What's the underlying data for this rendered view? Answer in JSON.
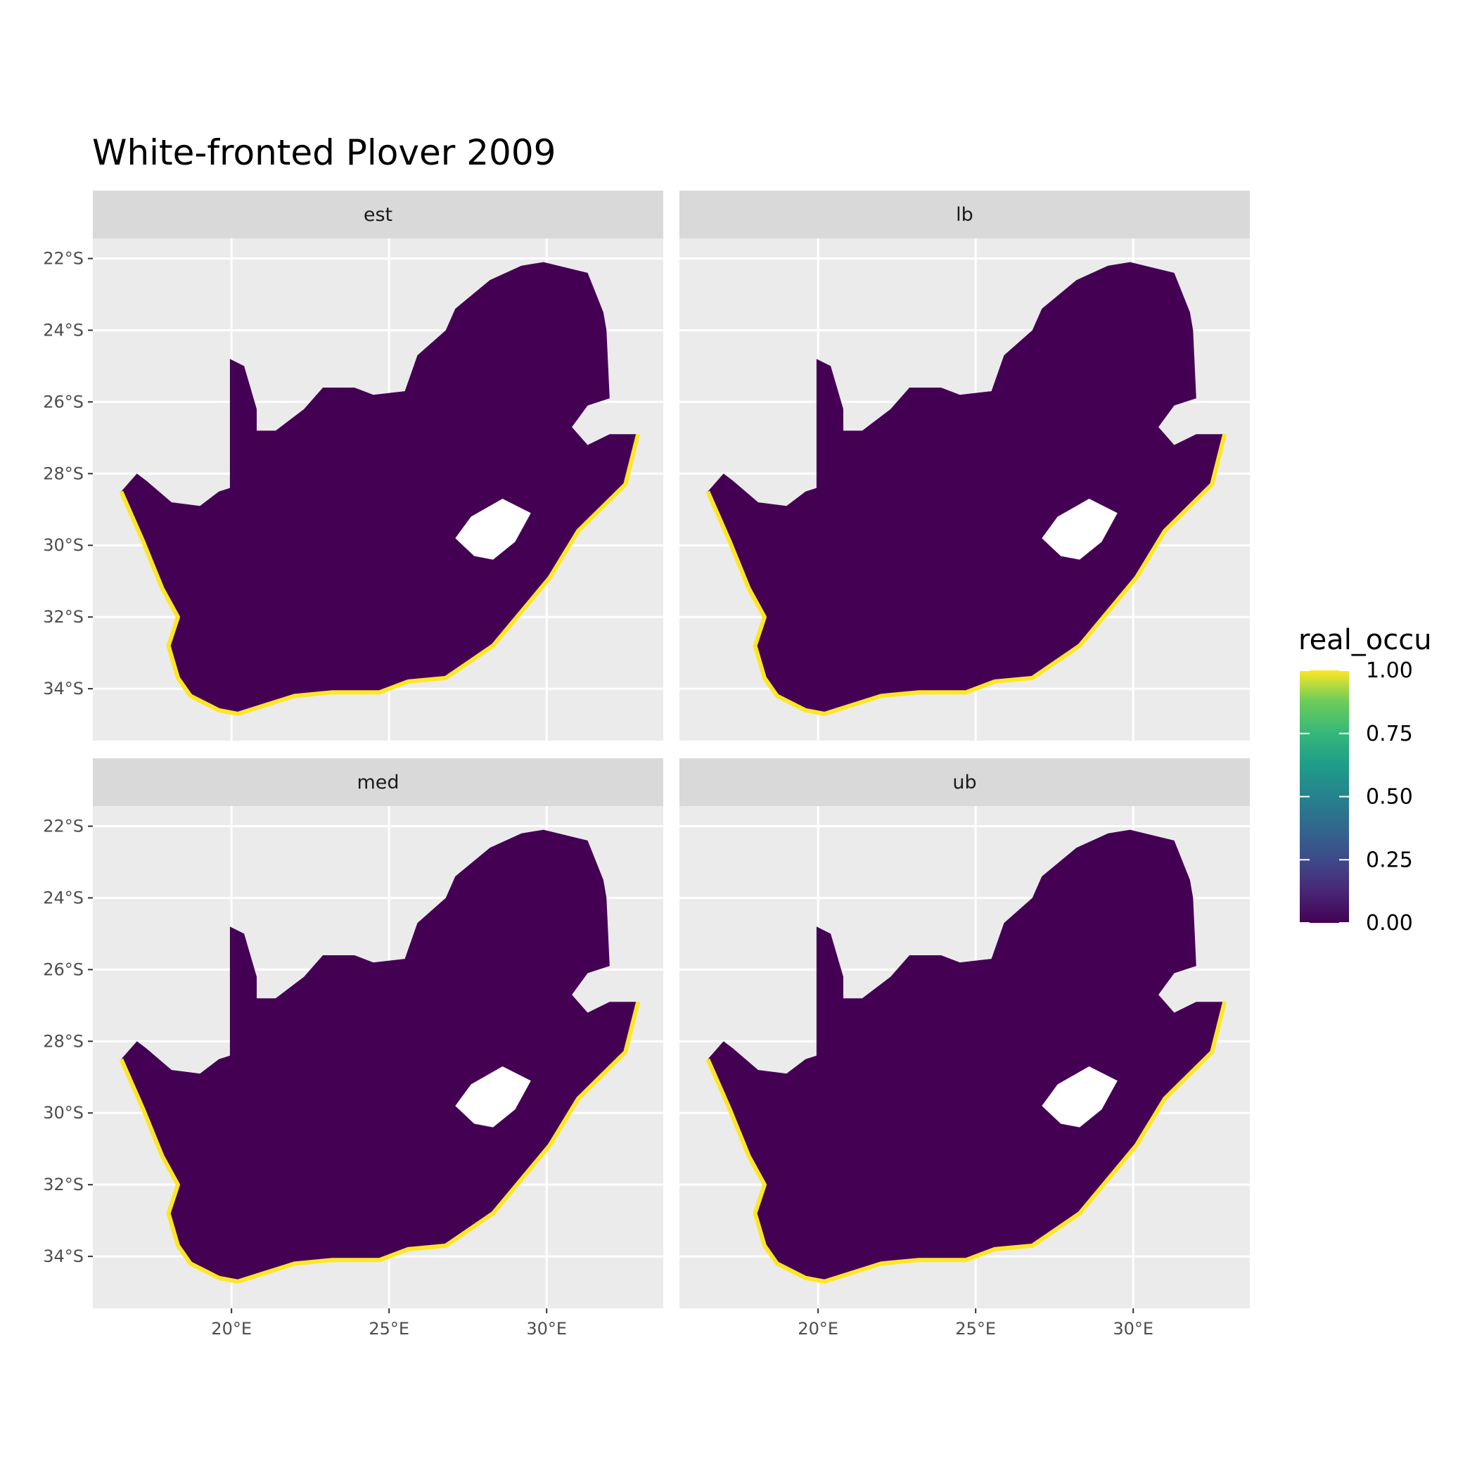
{
  "chart_data": {
    "type": "heatmap",
    "title": "White-fronted Plover 2009",
    "facets": [
      "est",
      "lb",
      "med",
      "ub"
    ],
    "x_ticks": [
      20,
      25,
      30
    ],
    "x_tick_labels": [
      "20°E",
      "25°E",
      "30°E"
    ],
    "y_ticks": [
      22,
      24,
      26,
      28,
      30,
      32,
      34
    ],
    "y_tick_labels": [
      "22°S",
      "24°S",
      "26°S",
      "28°S",
      "30°S",
      "32°S",
      "34°S"
    ],
    "xlim": [
      15.6,
      33.7
    ],
    "ylim": [
      -35.45,
      -21.44
    ],
    "grid": true,
    "legend": {
      "title": "real_occu",
      "placement": "right",
      "type": "continuous",
      "palette": "viridis",
      "range": [
        0,
        1
      ],
      "ticks": [
        "1.00",
        "0.75",
        "0.50",
        "0.25",
        "0.00"
      ],
      "tick_values": [
        1,
        0.75,
        0.5,
        0.25,
        0
      ]
    },
    "interior_value": 0.0,
    "coast_value": 1.0,
    "colors": {
      "low": "#440154",
      "high": "#FDE725",
      "panel_bg": "#EBEBEB",
      "strip_bg": "#D9D9D9"
    }
  }
}
